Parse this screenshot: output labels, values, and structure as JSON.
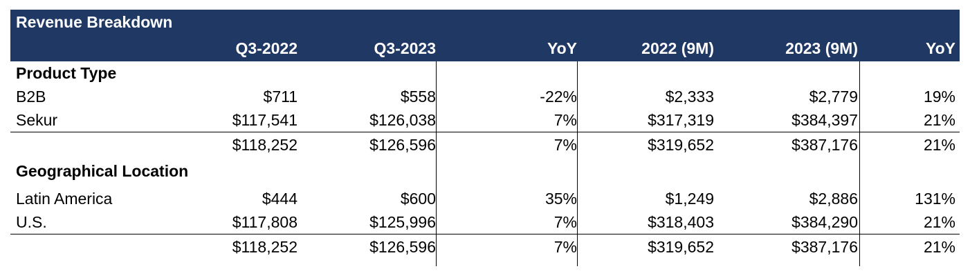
{
  "table": {
    "title": "Revenue Breakdown",
    "columns": [
      "Q3-2022",
      "Q3-2023",
      "YoY",
      "2022 (9M)",
      "2023 (9M)",
      "YoY"
    ],
    "sections": [
      {
        "heading": "Product Type",
        "rows": [
          {
            "label": "B2B",
            "values": [
              "$711",
              "$558",
              "-22%",
              "$2,333",
              "$2,779",
              "19%"
            ]
          },
          {
            "label": "Sekur",
            "values": [
              "$117,541",
              "$126,038",
              "7%",
              "$317,319",
              "$384,397",
              "21%"
            ]
          }
        ],
        "total": {
          "label": "",
          "values": [
            "$118,252",
            "$126,596",
            "7%",
            "$319,652",
            "$387,176",
            "21%"
          ]
        }
      },
      {
        "heading": "Geographical Location",
        "rows": [
          {
            "label": "Latin America",
            "values": [
              "$444",
              "$600",
              "35%",
              "$1,249",
              "$2,886",
              "131%"
            ]
          },
          {
            "label": "U.S.",
            "values": [
              "$117,808",
              "$125,996",
              "7%",
              "$318,403",
              "$384,290",
              "21%"
            ]
          }
        ],
        "total": {
          "label": "",
          "values": [
            "$118,252",
            "$126,596",
            "7%",
            "$319,652",
            "$387,176",
            "21%"
          ]
        }
      }
    ]
  }
}
